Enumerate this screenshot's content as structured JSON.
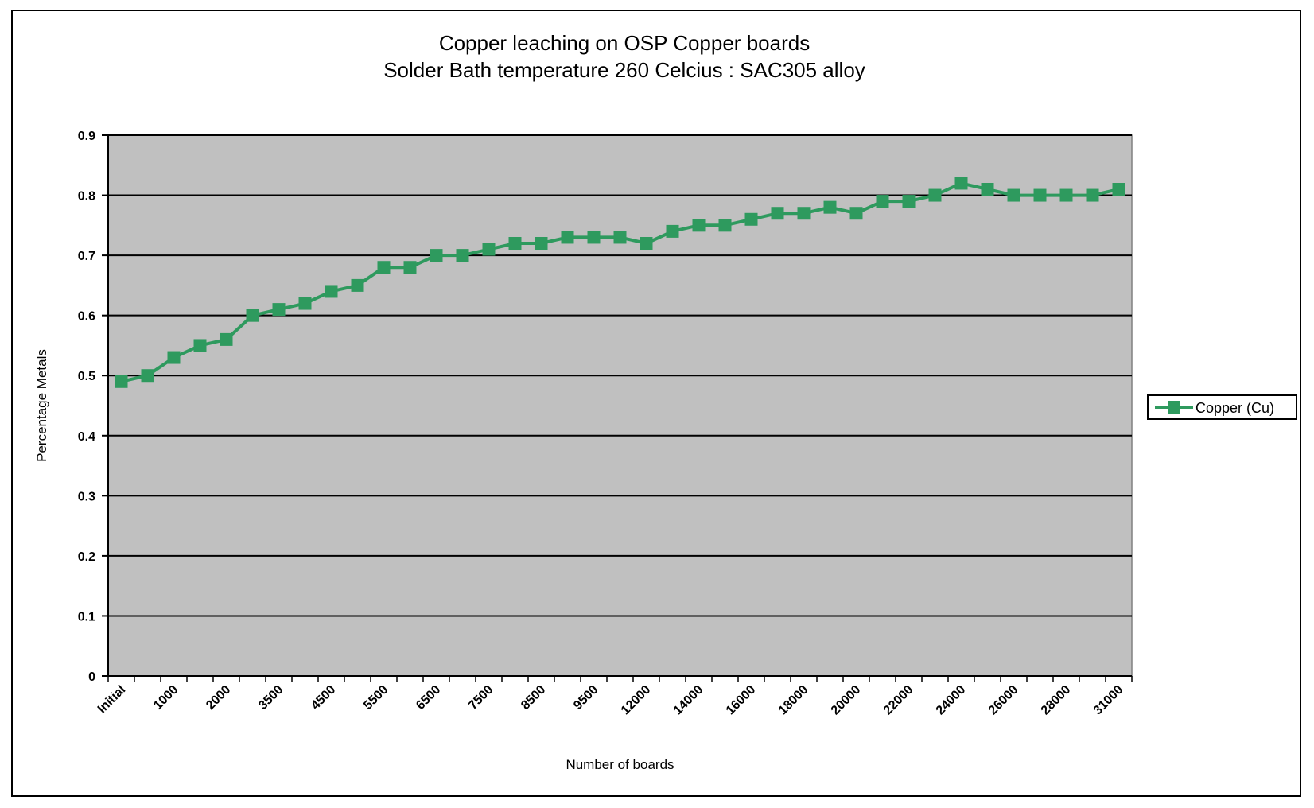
{
  "chart_data": {
    "type": "line",
    "title": "Copper leaching on OSP Copper boards",
    "subtitle": "Solder Bath temperature 260 Celcius :  SAC305 alloy",
    "xlabel": "Number of boards",
    "ylabel": "Percentage Metals",
    "ylim": [
      0,
      0.9
    ],
    "yticks": [
      "0",
      "0.1",
      "0.2",
      "0.3",
      "0.4",
      "0.5",
      "0.6",
      "0.7",
      "0.8",
      "0.9"
    ],
    "grid": true,
    "legend_position": "right",
    "plot_background": "#c0c0c0",
    "categories": [
      "Initial",
      "",
      "1000",
      "",
      "2000",
      "",
      "3500",
      "",
      "4500",
      "",
      "5500",
      "",
      "6500",
      "",
      "7500",
      "",
      "8500",
      "",
      "9500",
      "",
      "12000",
      "",
      "14000",
      "",
      "16000",
      "",
      "18000",
      "",
      "20000",
      "",
      "22000",
      "",
      "24000",
      "",
      "26000",
      "",
      "28000",
      "",
      "31000"
    ],
    "series": [
      {
        "name": "Copper (Cu)",
        "color": "#2e9a5e",
        "values": [
          0.49,
          0.5,
          0.53,
          0.55,
          0.56,
          0.6,
          0.61,
          0.62,
          0.64,
          0.65,
          0.68,
          0.68,
          0.7,
          0.7,
          0.71,
          0.72,
          0.72,
          0.73,
          0.73,
          0.73,
          0.72,
          0.74,
          0.75,
          0.75,
          0.76,
          0.77,
          0.77,
          0.78,
          0.77,
          0.79,
          0.79,
          0.8,
          0.82,
          0.81,
          0.8,
          0.8,
          0.8,
          0.8,
          0.81
        ]
      }
    ]
  }
}
